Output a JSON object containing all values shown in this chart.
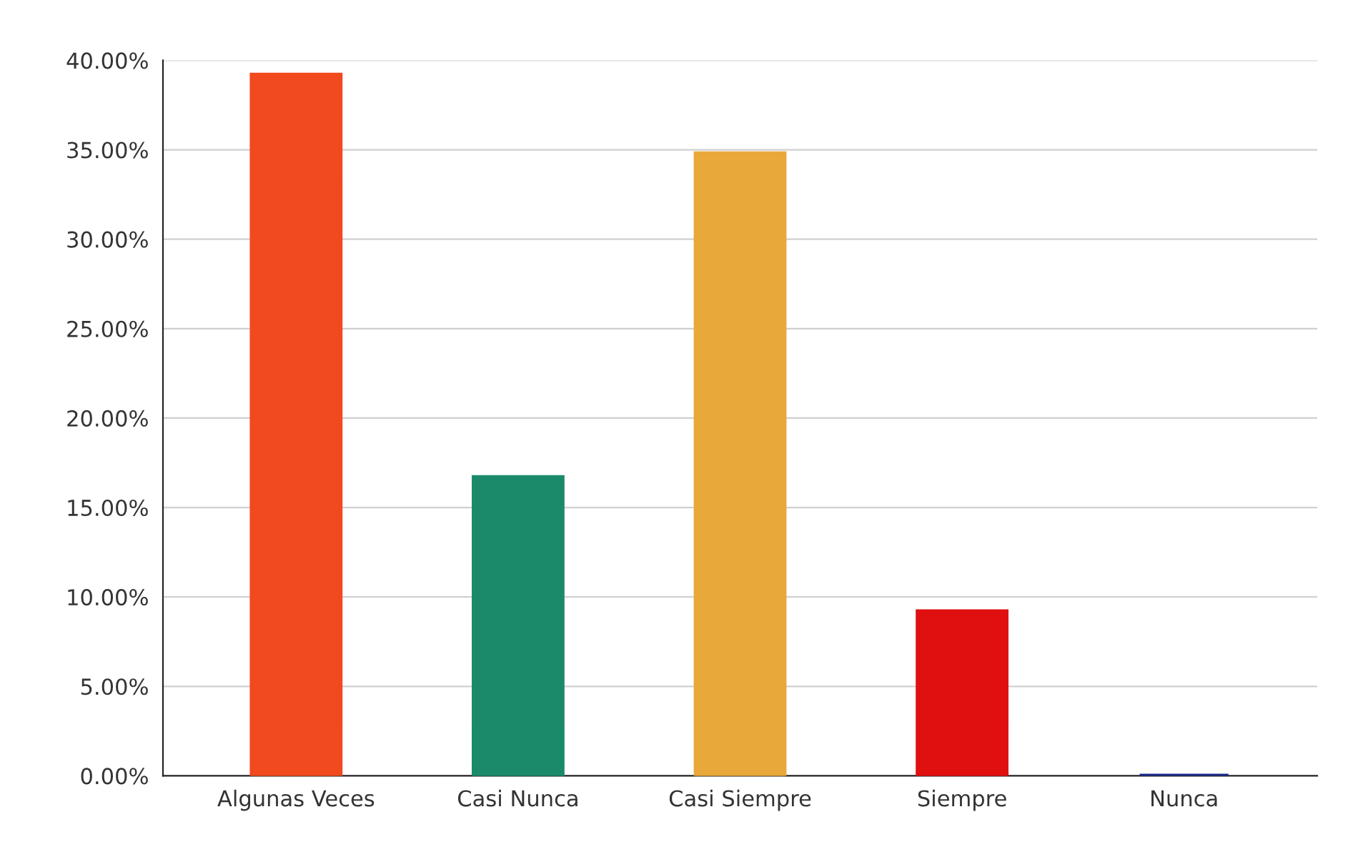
{
  "chart_data": {
    "type": "bar",
    "categories": [
      "Algunas Veces",
      "Casi Nunca",
      "Casi Siempre",
      "Siempre",
      "Nunca"
    ],
    "values": [
      39.2,
      16.7,
      34.8,
      9.2,
      0
    ],
    "colors": [
      "#f04a1e",
      "#1a8a6a",
      "#e8a83a",
      "#e01010",
      "#1a2a8a"
    ],
    "ylim": [
      0,
      40
    ],
    "yticks": [
      {
        "value": 0,
        "label": "0.00%"
      },
      {
        "value": 5,
        "label": "5.00%"
      },
      {
        "value": 10,
        "label": "10.00%"
      },
      {
        "value": 15,
        "label": "15.00%"
      },
      {
        "value": 20,
        "label": "20.00%"
      },
      {
        "value": 25,
        "label": "25.00%"
      },
      {
        "value": 30,
        "label": "30.00%"
      },
      {
        "value": 35,
        "label": "35.00%"
      },
      {
        "value": 40,
        "label": "40.00%"
      }
    ],
    "grid": "y",
    "legend": false
  }
}
